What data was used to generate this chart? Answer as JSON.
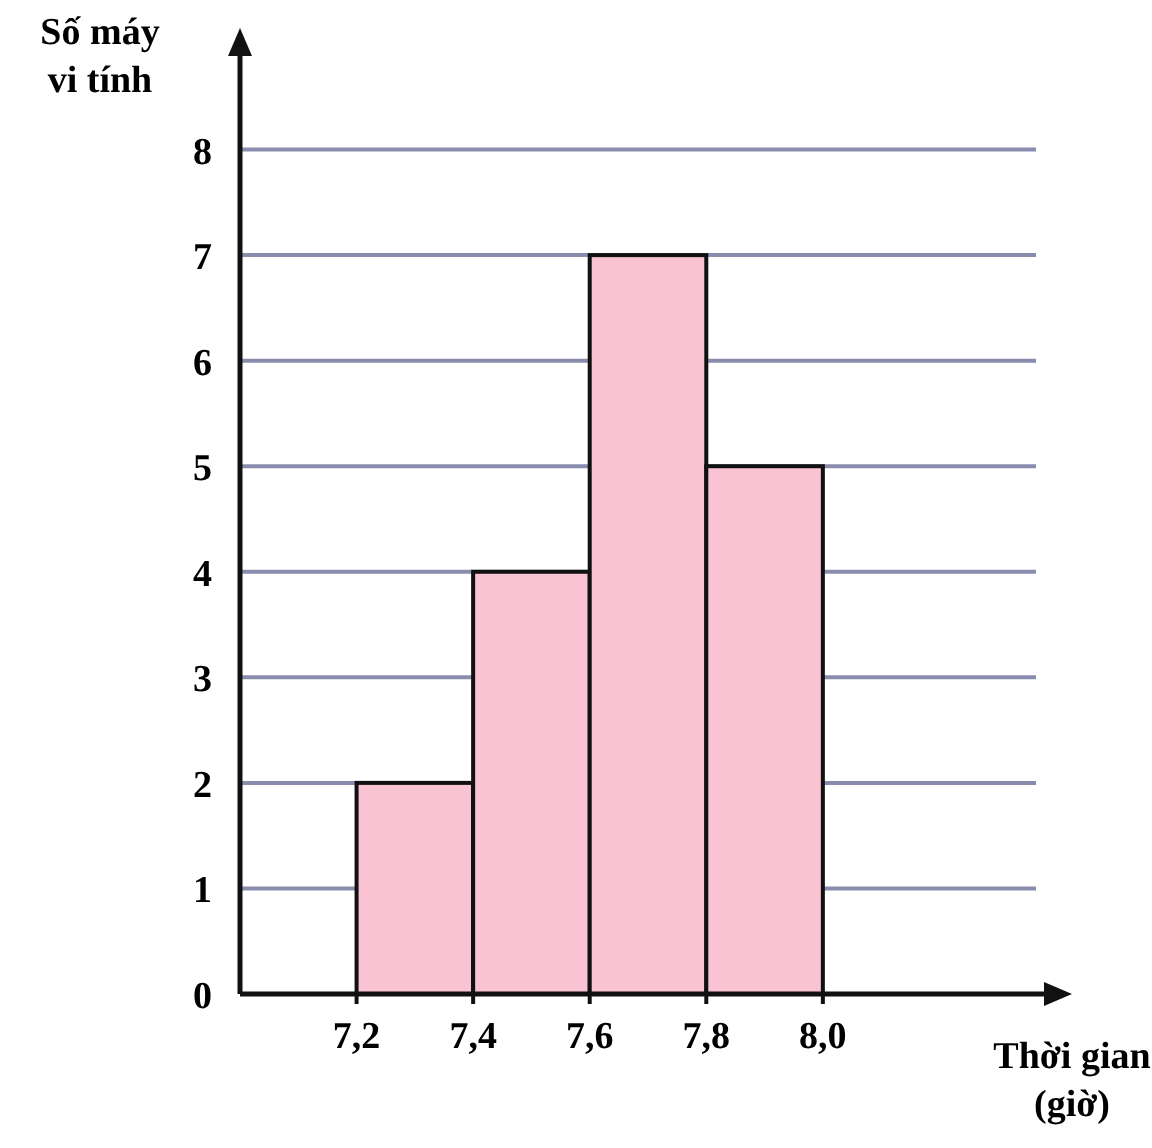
{
  "chart_data": {
    "type": "histogram",
    "xlabel": "Thời gian\n(giờ)",
    "ylabel": "Số máy\nvi tính",
    "bins": [
      7.2,
      7.4,
      7.6,
      7.8,
      8.0
    ],
    "values": [
      2,
      4,
      7,
      5
    ],
    "color": "#f9c3d3",
    "xlim": [
      7.0,
      8.4
    ],
    "xticks": [
      {
        "value": 7.2,
        "label": "7,2"
      },
      {
        "value": 7.4,
        "label": "7,4"
      },
      {
        "value": 7.6,
        "label": "7,6"
      },
      {
        "value": 7.8,
        "label": "7,8"
      },
      {
        "value": 8.0,
        "label": "8,0"
      }
    ],
    "ylim": [
      0,
      9
    ],
    "yticks": [
      0,
      1,
      2,
      3,
      4,
      5,
      6,
      7,
      8
    ],
    "grid": "y"
  }
}
